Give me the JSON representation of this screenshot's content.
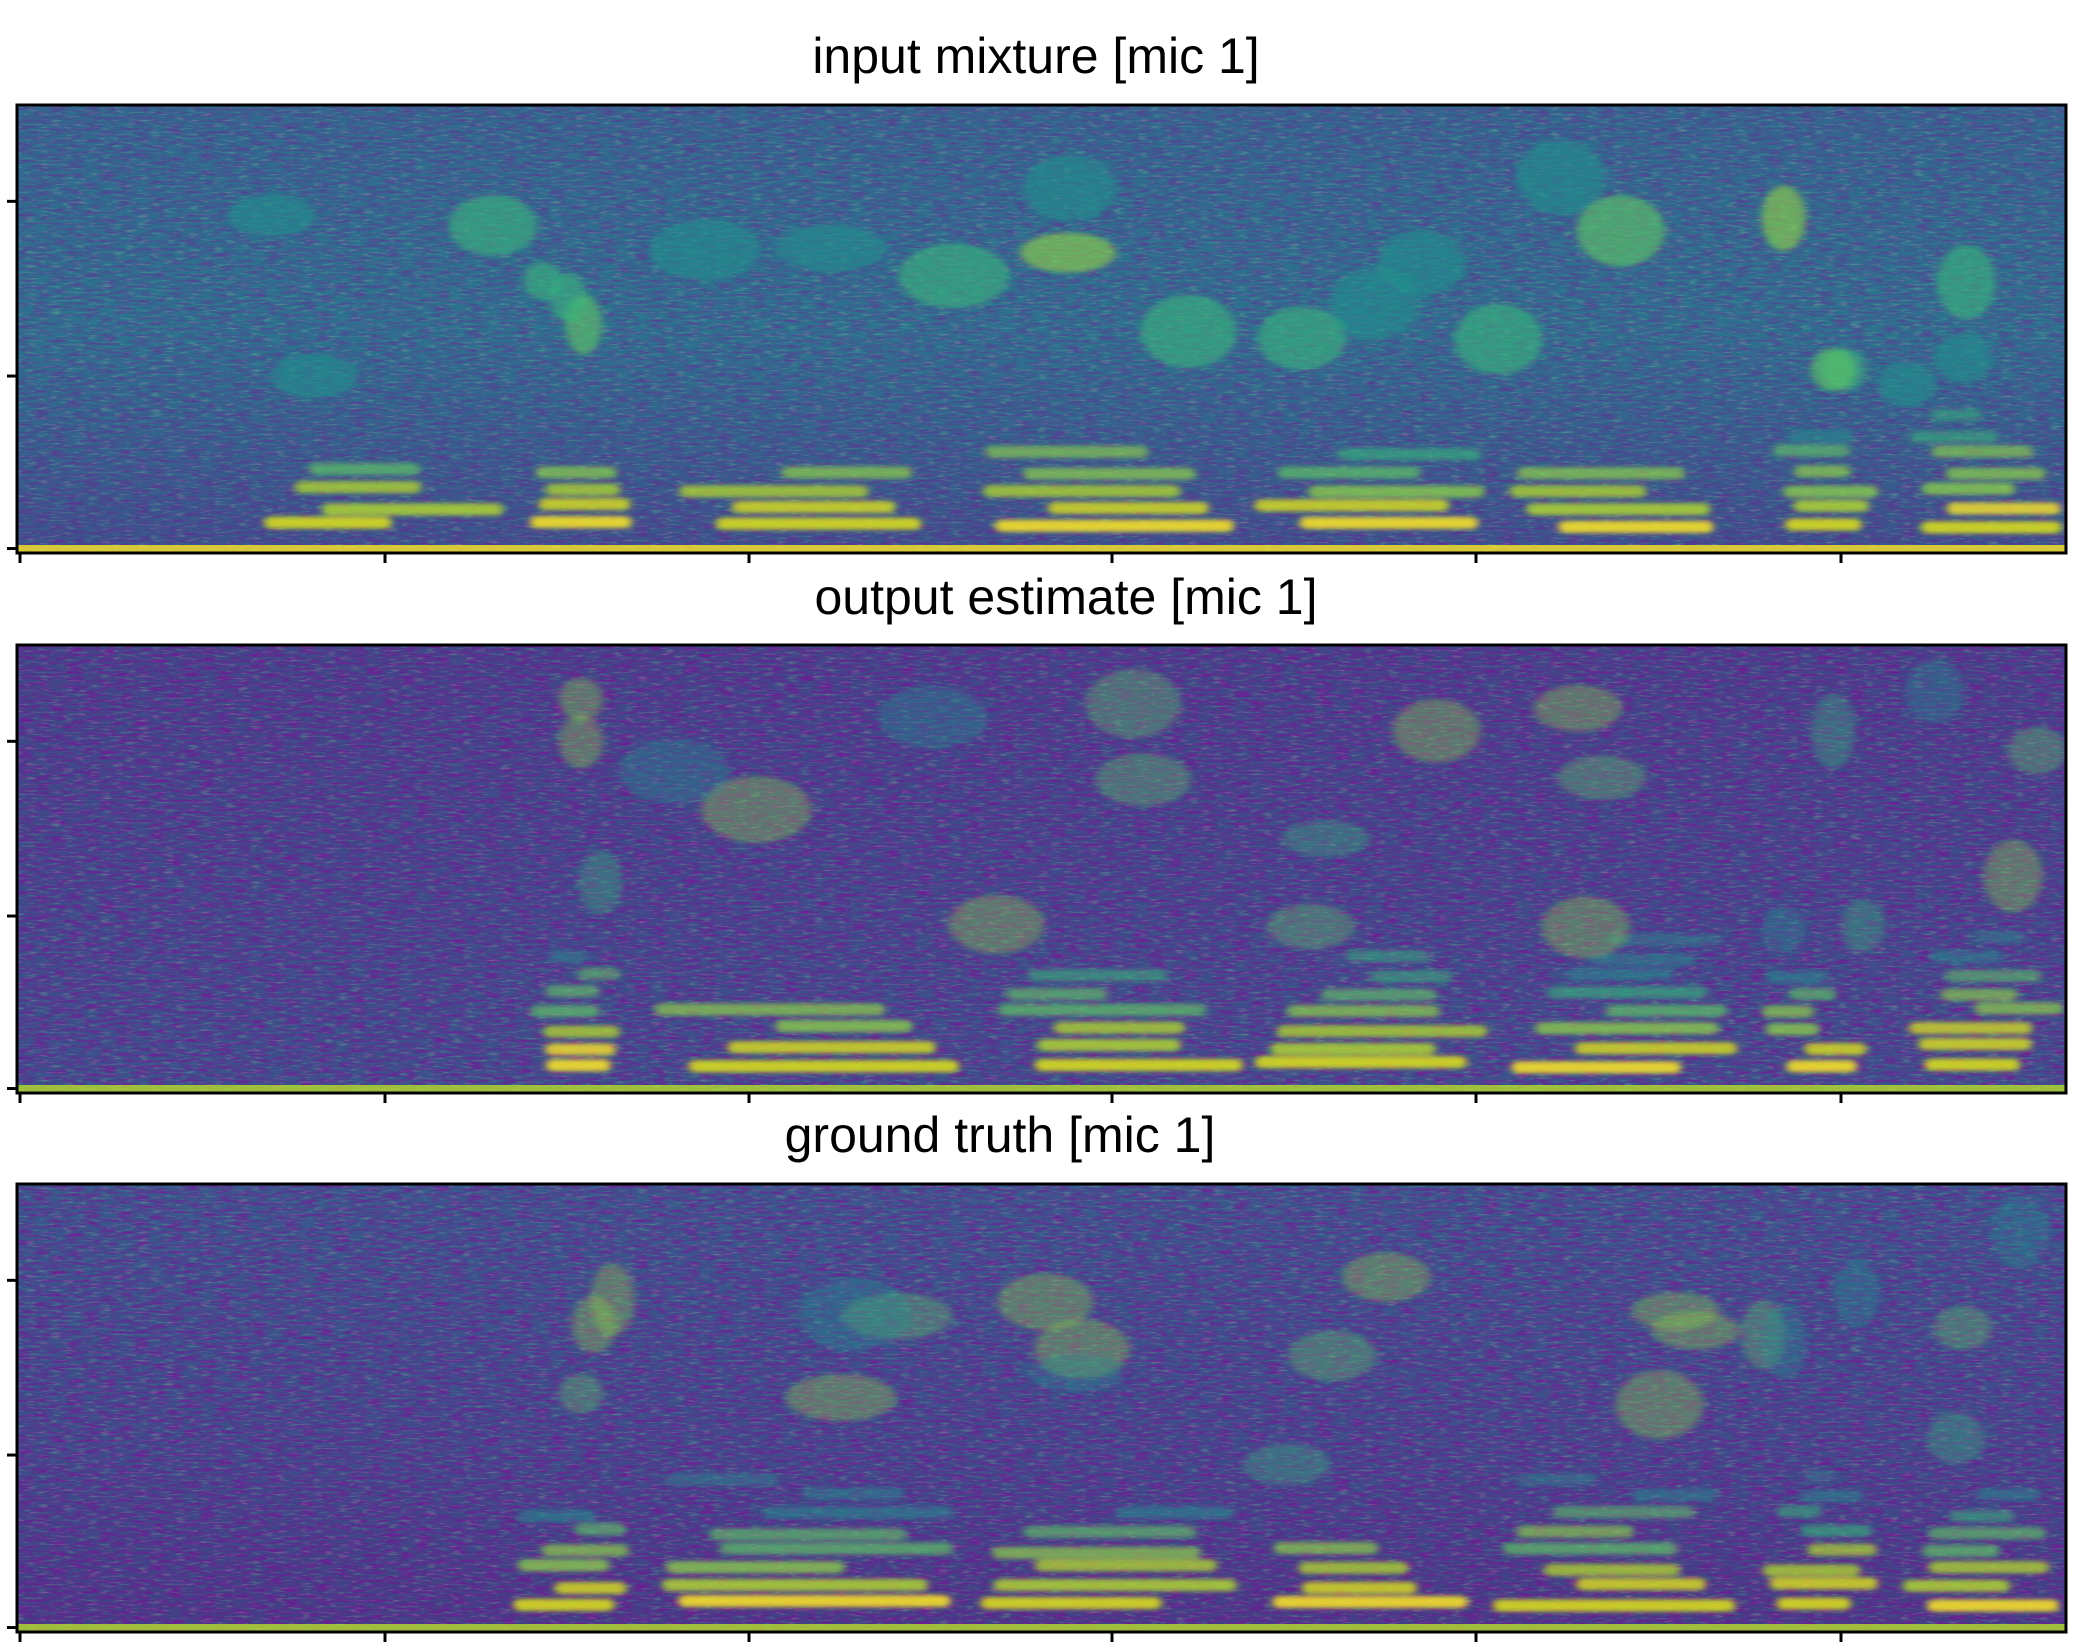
{
  "panels": [
    {
      "title": "input mixture [mic 1]"
    },
    {
      "title": "output estimate [mic 1]"
    },
    {
      "title": "ground truth [mic 1]"
    }
  ]
}
